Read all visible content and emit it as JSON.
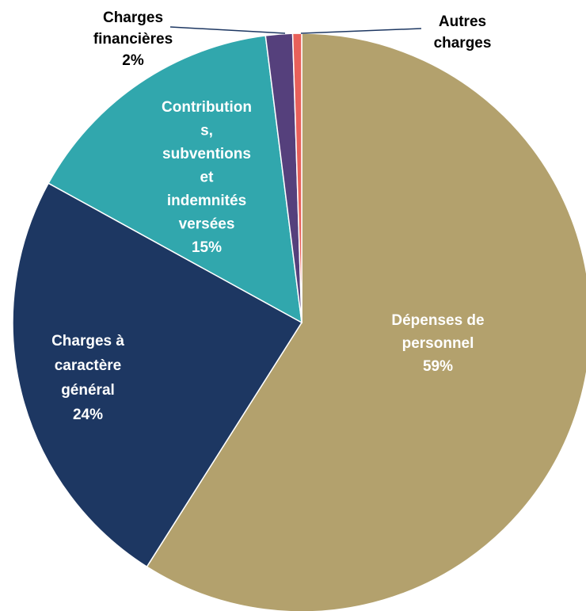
{
  "chart_data": {
    "type": "pie",
    "slices": [
      {
        "name": "Dépenses de personnel",
        "value": 59,
        "display": "59%",
        "color": "#b3a16d",
        "label_lines": [
          "Dépenses de",
          "personnel",
          "59%"
        ],
        "label_color": "#ffffff"
      },
      {
        "name": "Charges à caractère général",
        "value": 24,
        "display": "24%",
        "color": "#1d3762",
        "label_lines": [
          "Charges à",
          "caractère",
          "général",
          "24%"
        ],
        "label_color": "#ffffff"
      },
      {
        "name": "Contributions, subventions et indemnités versées",
        "value": 15,
        "display": "15%",
        "color": "#31a7ad",
        "label_lines": [
          "Contribution",
          "s,",
          "subventions",
          "et",
          "indemnités",
          "versées",
          "15%"
        ],
        "label_color": "#ffffff"
      },
      {
        "name": "Charges financières",
        "value": 1.5,
        "display": "2%",
        "color": "#55407c",
        "label_lines": [
          "Charges",
          "financières",
          "2%"
        ],
        "label_color": "#000000"
      },
      {
        "name": "Autres charges",
        "value": 0.5,
        "display": "",
        "color": "#e8605a",
        "label_lines": [
          "Autres",
          "charges"
        ],
        "label_color": "#000000"
      }
    ],
    "start_angle_deg": 0,
    "direction": "clockwise",
    "legend": "none"
  }
}
